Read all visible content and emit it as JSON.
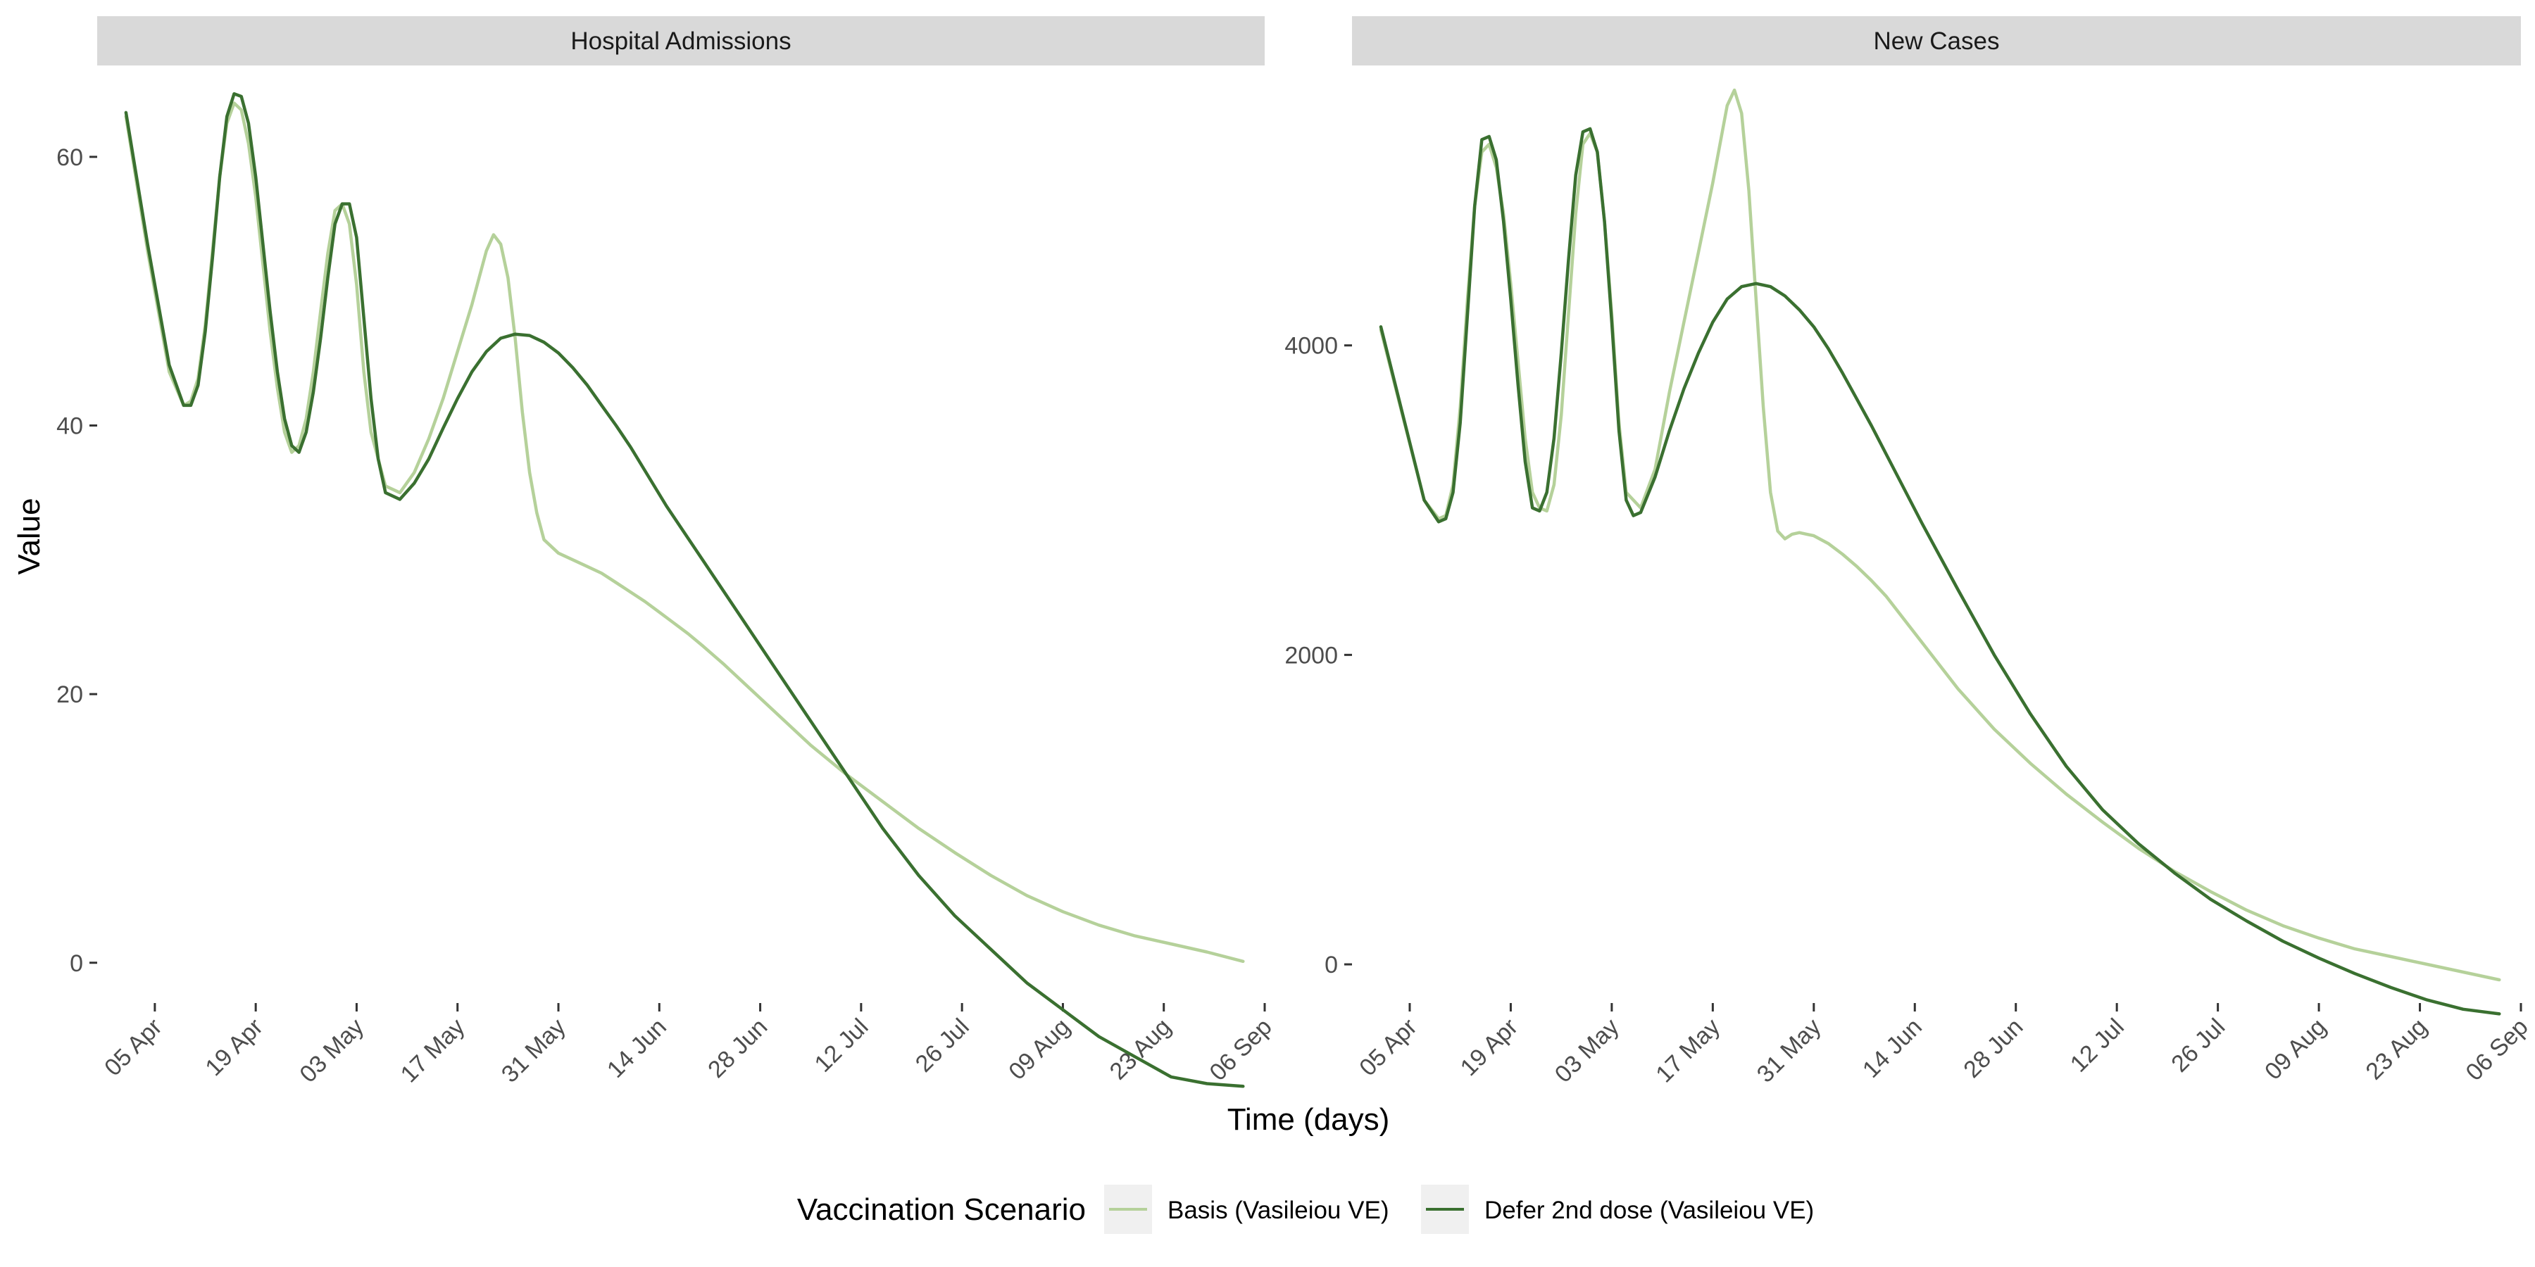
{
  "colors": {
    "basis": "#b5d19a",
    "defer": "#3a7030",
    "strip_bg": "#d9d9d9",
    "key_bg": "#f0f0f0",
    "tick": "#333333"
  },
  "chart_data": [
    {
      "type": "line",
      "title": "Hospital Admissions",
      "xlabel": "Time (days)",
      "ylabel": "Value",
      "x_ticks": [
        "05 Apr",
        "19 Apr",
        "03 May",
        "17 May",
        "31 May",
        "14 Jun",
        "28 Jun",
        "12 Jul",
        "26 Jul",
        "09 Aug",
        "23 Aug",
        "06 Sep"
      ],
      "ylim": [
        -3,
        66.7
      ],
      "y_ticks": [
        0,
        20,
        40,
        60
      ],
      "grid": false,
      "series": [
        {
          "name": "Basis (Vasileiou VE)",
          "color_key": "basis",
          "x": [
            0,
            3,
            6,
            8,
            9,
            10,
            11,
            12,
            13,
            14,
            15,
            16,
            17,
            18,
            19,
            20,
            21,
            22,
            23,
            24,
            25,
            26,
            27,
            28,
            29,
            30,
            31,
            32,
            33,
            34,
            36,
            38,
            40,
            42,
            44,
            46,
            48,
            49,
            50,
            51,
            52,
            53,
            54,
            55,
            56,
            57,
            58,
            60,
            62,
            64,
            66,
            68,
            70,
            72,
            74,
            76,
            78,
            80,
            83,
            86,
            90,
            95,
            100,
            105,
            110,
            115,
            120,
            125,
            130,
            135,
            140,
            145,
            150,
            155
          ],
          "y": [
            63.0,
            53.0,
            44.0,
            41.5,
            41.8,
            43.5,
            47.5,
            53.0,
            58.5,
            62.5,
            64.0,
            63.5,
            61.0,
            57.0,
            52.0,
            47.0,
            42.8,
            39.5,
            38.0,
            38.5,
            40.5,
            44.0,
            48.5,
            52.8,
            56.0,
            56.5,
            55.0,
            50.5,
            44.0,
            39.5,
            35.5,
            35.0,
            36.5,
            39.0,
            42.0,
            45.5,
            49.0,
            51.0,
            53.0,
            54.2,
            53.5,
            51.0,
            46.5,
            41.0,
            36.5,
            33.5,
            31.5,
            30.5,
            30.0,
            29.5,
            29.0,
            28.3,
            27.6,
            26.9,
            26.1,
            25.3,
            24.5,
            23.6,
            22.2,
            20.7,
            18.7,
            16.2,
            14.0,
            12.0,
            10.0,
            8.2,
            6.5,
            5.0,
            3.8,
            2.8,
            2.0,
            1.4,
            0.8,
            0.1
          ]
        },
        {
          "name": "Defer 2nd dose (Vasileiou VE)",
          "color_key": "defer",
          "x": [
            0,
            3,
            6,
            8,
            9,
            10,
            11,
            12,
            13,
            14,
            15,
            16,
            17,
            18,
            19,
            20,
            21,
            22,
            23,
            24,
            25,
            26,
            27,
            28,
            29,
            30,
            31,
            32,
            33,
            34,
            35,
            36,
            38,
            40,
            42,
            44,
            46,
            48,
            50,
            52,
            54,
            56,
            58,
            60,
            62,
            64,
            66,
            68,
            70,
            75,
            80,
            85,
            90,
            95,
            100,
            105,
            110,
            115,
            120,
            125,
            130,
            135,
            140,
            145,
            150,
            155
          ],
          "y": [
            63.3,
            53.5,
            44.5,
            41.5,
            41.5,
            43.0,
            47.0,
            52.5,
            58.5,
            63.0,
            64.7,
            64.5,
            62.5,
            58.5,
            53.5,
            48.5,
            44.0,
            40.5,
            38.5,
            38.0,
            39.5,
            42.5,
            46.5,
            51.0,
            55.0,
            56.5,
            56.5,
            54.0,
            48.0,
            42.0,
            37.5,
            35.0,
            34.5,
            35.7,
            37.5,
            39.8,
            42.0,
            44.0,
            45.5,
            46.5,
            46.8,
            46.7,
            46.2,
            45.4,
            44.3,
            43.0,
            41.5,
            40.0,
            38.4,
            34.0,
            30.0,
            26.0,
            22.0,
            18.0,
            14.0,
            10.0,
            6.5,
            3.5,
            1.0,
            -1.5,
            -3.5,
            -5.5,
            -7.0,
            -8.5,
            -9.0,
            -9.2
          ]
        }
      ]
    },
    {
      "type": "line",
      "title": "New Cases",
      "xlabel": "Time (days)",
      "ylabel": "Value",
      "x_ticks": [
        "05 Apr",
        "19 Apr",
        "03 May",
        "17 May",
        "31 May",
        "14 Jun",
        "28 Jun",
        "12 Jul",
        "26 Jul",
        "09 Aug",
        "23 Aug",
        "06 Sep"
      ],
      "ylim": [
        -250,
        5800
      ],
      "y_ticks": [
        0,
        2000,
        4000
      ],
      "grid": false,
      "series": [
        {
          "name": "Basis (Vasileiou VE)",
          "color_key": "basis",
          "x": [
            0,
            3,
            6,
            8,
            9,
            10,
            11,
            12,
            13,
            14,
            15,
            16,
            17,
            18,
            19,
            20,
            21,
            22,
            23,
            24,
            25,
            26,
            27,
            28,
            29,
            30,
            31,
            32,
            33,
            34,
            36,
            38,
            40,
            42,
            44,
            46,
            48,
            49,
            50,
            51,
            52,
            53,
            54,
            55,
            56,
            57,
            58,
            59,
            60,
            62,
            64,
            66,
            68,
            70,
            75,
            80,
            85,
            90,
            95,
            100,
            105,
            110,
            115,
            120,
            125,
            130,
            135,
            140,
            145,
            150,
            155
          ],
          "y": [
            4100,
            3550,
            3000,
            2880,
            2900,
            3100,
            3600,
            4300,
            4900,
            5250,
            5300,
            5150,
            4850,
            4400,
            3900,
            3400,
            3050,
            2950,
            2930,
            3100,
            3550,
            4200,
            4850,
            5300,
            5370,
            5250,
            4800,
            4200,
            3500,
            3050,
            2950,
            3200,
            3700,
            4150,
            4600,
            5050,
            5550,
            5650,
            5500,
            5000,
            4300,
            3600,
            3050,
            2800,
            2750,
            2780,
            2790,
            2780,
            2770,
            2720,
            2650,
            2570,
            2480,
            2380,
            2080,
            1780,
            1520,
            1300,
            1100,
            920,
            750,
            600,
            470,
            350,
            250,
            170,
            100,
            50,
            0,
            -50,
            -100
          ]
        },
        {
          "name": "Defer 2nd dose (Vasileiou VE)",
          "color_key": "defer",
          "x": [
            0,
            3,
            6,
            8,
            9,
            10,
            11,
            12,
            13,
            14,
            15,
            16,
            17,
            18,
            19,
            20,
            21,
            22,
            23,
            24,
            25,
            26,
            27,
            28,
            29,
            30,
            31,
            32,
            33,
            34,
            35,
            36,
            38,
            40,
            42,
            44,
            46,
            48,
            50,
            52,
            54,
            56,
            58,
            60,
            62,
            64,
            66,
            68,
            70,
            75,
            80,
            85,
            90,
            95,
            100,
            105,
            110,
            115,
            120,
            125,
            130,
            135,
            140,
            145,
            150,
            155
          ],
          "y": [
            4120,
            3560,
            3000,
            2860,
            2880,
            3050,
            3500,
            4200,
            4900,
            5330,
            5350,
            5200,
            4800,
            4300,
            3750,
            3250,
            2950,
            2930,
            3050,
            3400,
            3950,
            4550,
            5100,
            5380,
            5400,
            5250,
            4800,
            4150,
            3450,
            3000,
            2900,
            2920,
            3150,
            3450,
            3720,
            3950,
            4150,
            4300,
            4380,
            4400,
            4380,
            4320,
            4230,
            4120,
            3980,
            3820,
            3650,
            3480,
            3300,
            2850,
            2420,
            2000,
            1620,
            1280,
            1000,
            780,
            590,
            420,
            280,
            150,
            40,
            -60,
            -150,
            -230,
            -290,
            -320
          ]
        }
      ]
    }
  ],
  "legend": {
    "title": "Vaccination Scenario",
    "items": [
      {
        "label": "Basis (Vasileiou VE)",
        "color_key": "basis"
      },
      {
        "label": "Defer 2nd dose (Vasileiou VE)",
        "color_key": "defer"
      }
    ]
  }
}
